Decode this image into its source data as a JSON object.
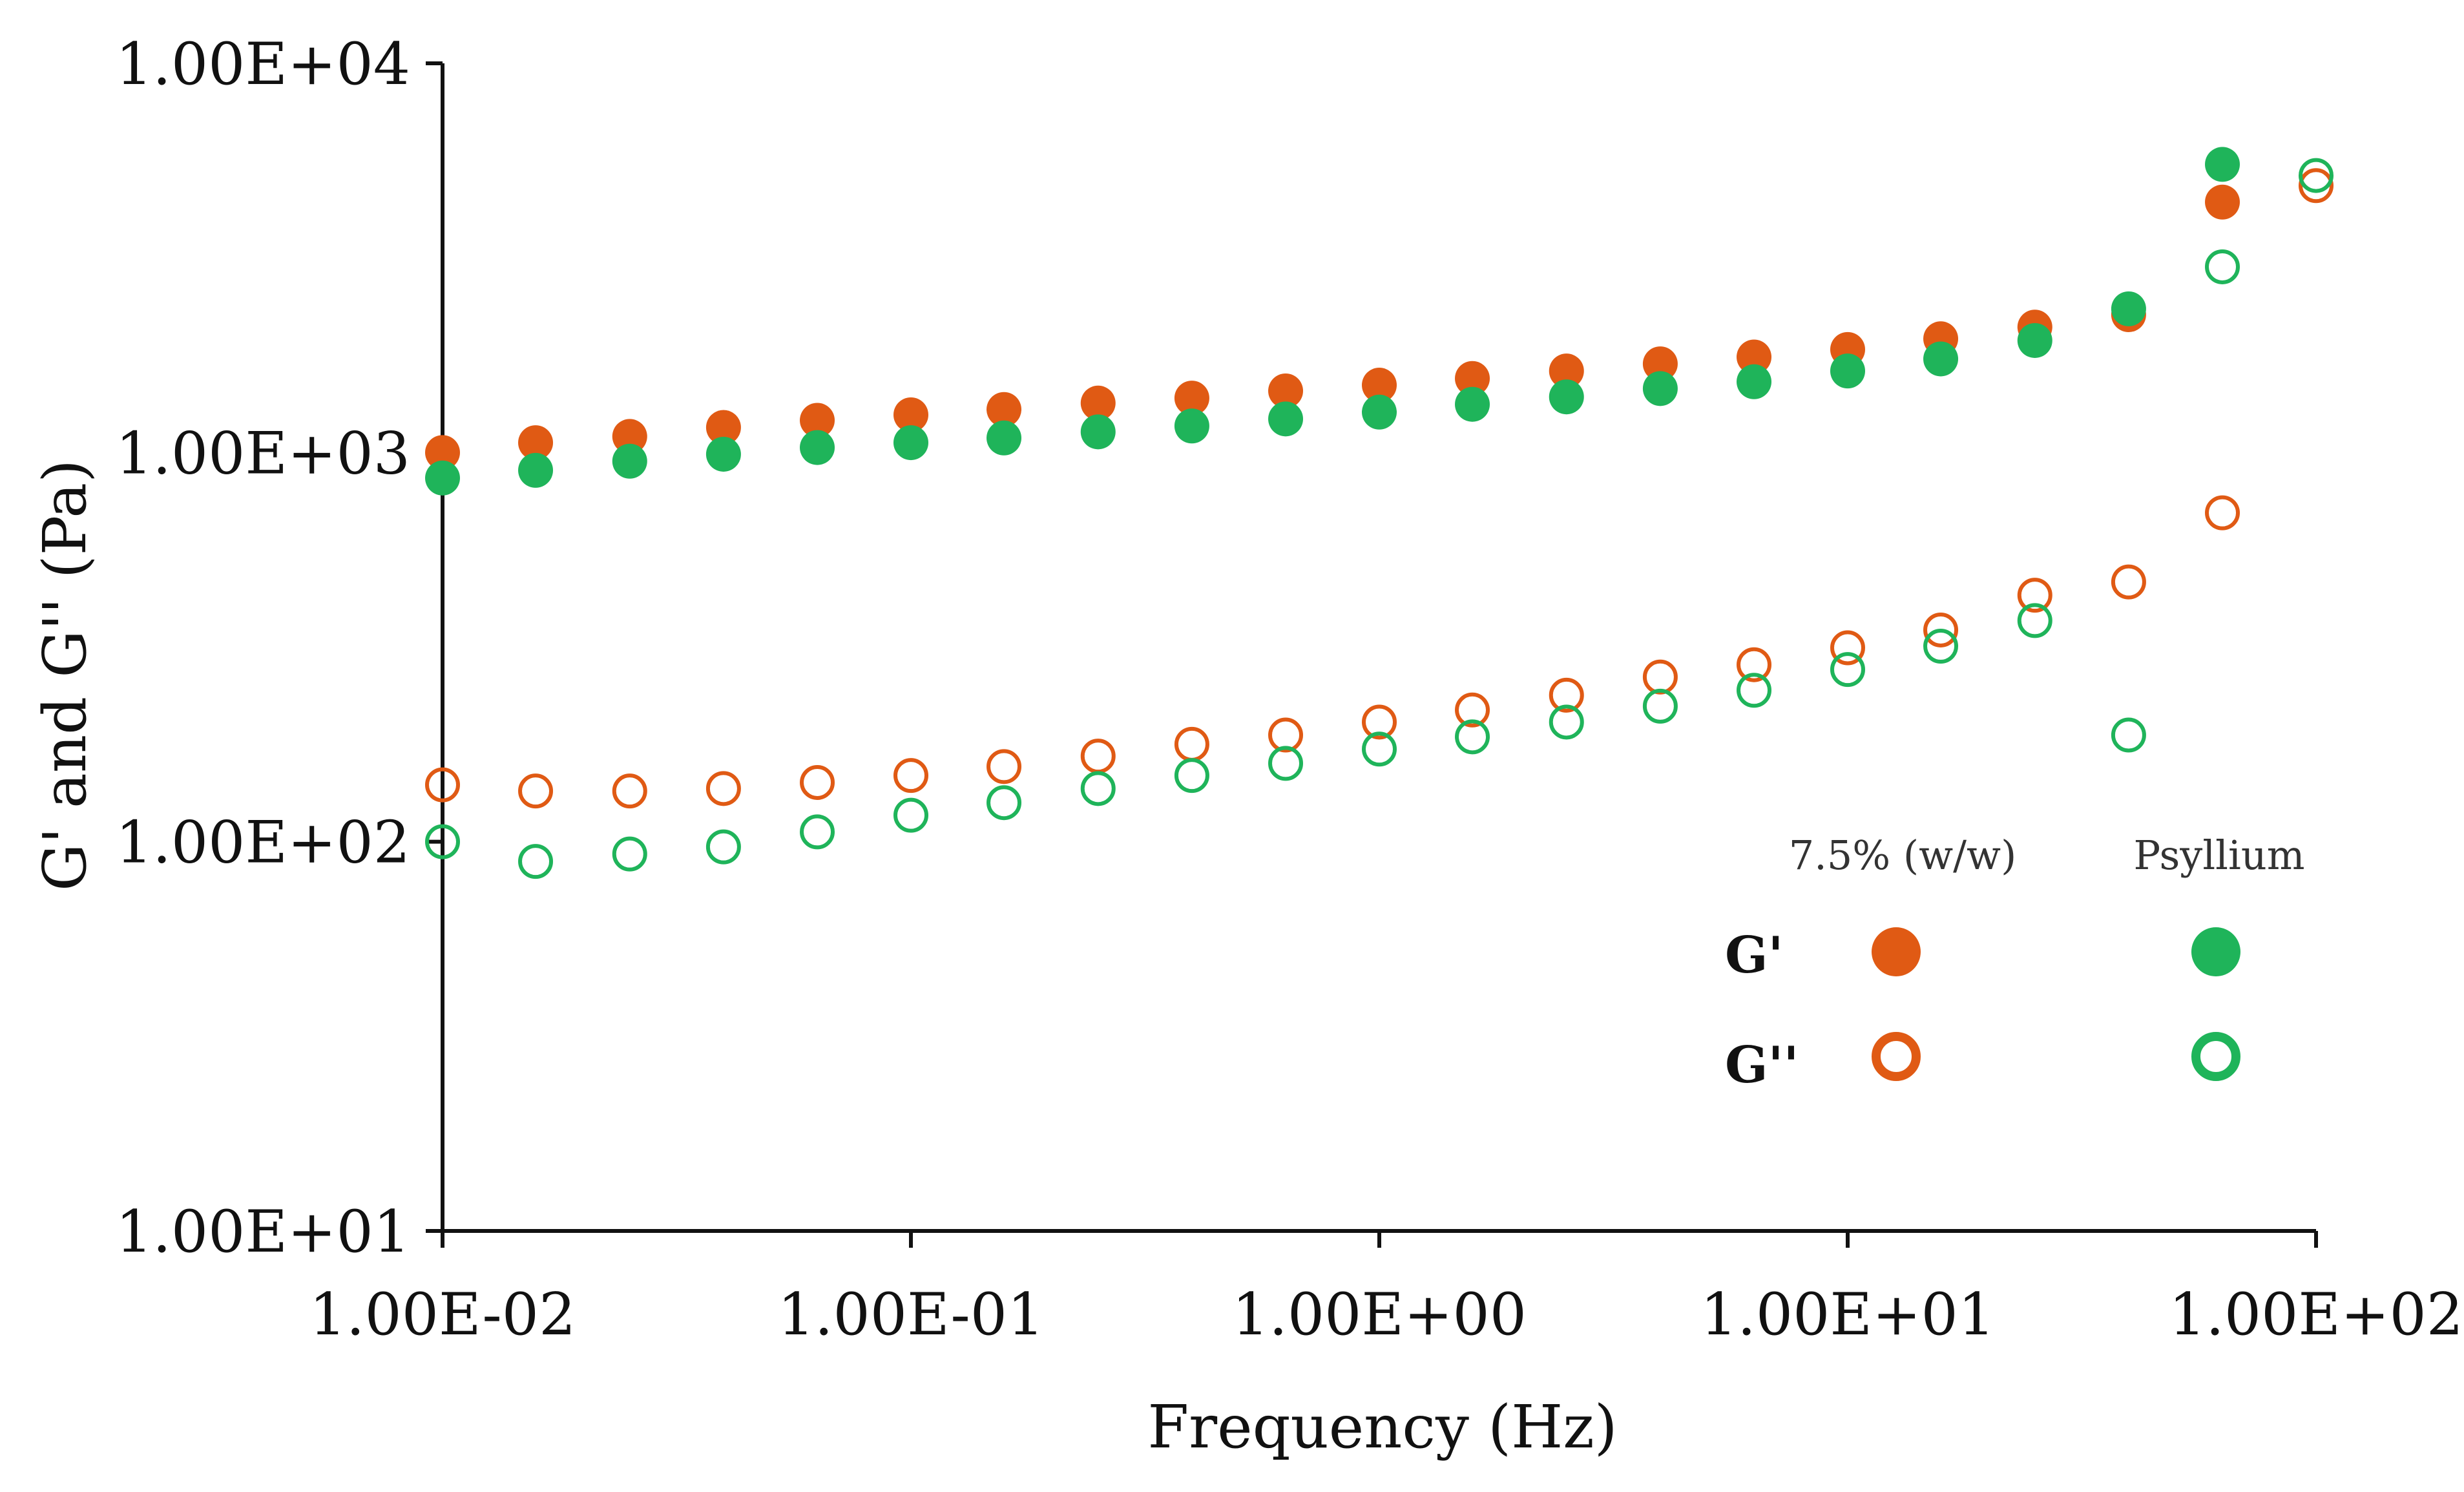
{
  "chart_data": {
    "type": "scatter",
    "title": "",
    "xlabel": "Frequency (Hz)",
    "ylabel": "G' and G'' (Pa)",
    "x_scale": "log",
    "y_scale": "log",
    "xlim": [
      0.01,
      100
    ],
    "ylim": [
      10,
      10000
    ],
    "x_tick_values": [
      0.01,
      0.1,
      1,
      10,
      100
    ],
    "x_tick_labels": [
      "1.00E-02",
      "1.00E-01",
      "1.00E+00",
      "1.00E+01",
      "1.00E+02"
    ],
    "y_tick_values": [
      10,
      100,
      1000,
      10000
    ],
    "y_tick_labels": [
      "1.00E+01",
      "1.00E+02",
      "1.00E+03",
      "1.00E+04"
    ],
    "grid": false,
    "legend": {
      "placement": "bottom-right",
      "column_headers": [
        "7.5% (w/w)",
        "Psyllium"
      ],
      "row_labels": [
        "G'",
        "G''"
      ]
    },
    "x": [
      0.01,
      0.0158,
      0.0251,
      0.0398,
      0.0631,
      0.1,
      0.158,
      0.251,
      0.398,
      0.631,
      1.0,
      1.58,
      2.51,
      3.98,
      6.31,
      10.0,
      15.8,
      25.1,
      39.8,
      63.1,
      100
    ],
    "series": [
      {
        "name": "7.5% (w/w) G'",
        "color": "#e05a14",
        "marker": "filled",
        "values": [
          1000,
          1060,
          1100,
          1160,
          1210,
          1250,
          1290,
          1340,
          1380,
          1440,
          1490,
          1550,
          1620,
          1690,
          1760,
          1840,
          1960,
          2100,
          2260,
          4400,
          null
        ]
      },
      {
        "name": "Psyllium G'",
        "color": "#1fb45a",
        "marker": "filled",
        "values": [
          860,
          900,
          950,
          990,
          1030,
          1060,
          1090,
          1130,
          1170,
          1220,
          1270,
          1330,
          1390,
          1460,
          1520,
          1620,
          1740,
          1940,
          2340,
          5500,
          null
        ]
      },
      {
        "name": "7.5% (w/w) G''",
        "color": "#e05a14",
        "marker": "open",
        "values": [
          140,
          135,
          135,
          137,
          142,
          148,
          156,
          166,
          178,
          188,
          203,
          218,
          238,
          265,
          285,
          315,
          350,
          430,
          465,
          700,
          4850
        ]
      },
      {
        "name": "Psyllium G''",
        "color": "#1fb45a",
        "marker": "open",
        "values": [
          100,
          89,
          93,
          97,
          106,
          117,
          126,
          137,
          148,
          159,
          173,
          186,
          203,
          223,
          245,
          277,
          318,
          370,
          188,
          3000,
          5150
        ]
      }
    ]
  }
}
